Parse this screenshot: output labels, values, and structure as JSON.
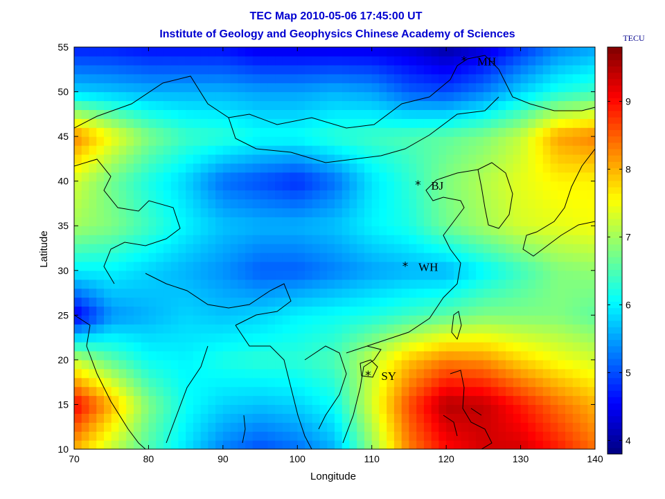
{
  "chart_data": {
    "type": "heatmap",
    "title": "TEC Map 2010-05-06 17:45:00 UT",
    "subtitle": "Institute of Geology and Geophysics Chinese Academy of Sciences",
    "xlabel": "Longitude",
    "ylabel": "Latitude",
    "xlim": [
      70,
      140
    ],
    "ylim": [
      10,
      55
    ],
    "xticks": [
      "70",
      "80",
      "90",
      "100",
      "110",
      "120",
      "130",
      "140"
    ],
    "yticks": [
      "10",
      "15",
      "20",
      "25",
      "30",
      "35",
      "40",
      "45",
      "50",
      "55"
    ],
    "colorbar": {
      "label": "TECU",
      "range": [
        3.8,
        9.8
      ],
      "ticks": [
        "4",
        "5",
        "6",
        "7",
        "8",
        "9"
      ],
      "colormap": "jet"
    },
    "grid": false,
    "stations": [
      {
        "name": "MH",
        "lon": 122.4,
        "lat": 53.5
      },
      {
        "name": "BJ",
        "lon": 116.2,
        "lat": 39.6
      },
      {
        "name": "WH",
        "lon": 114.5,
        "lat": 30.5
      },
      {
        "name": "SY",
        "lon": 109.5,
        "lat": 18.3
      }
    ],
    "tec_grid": {
      "lon": [
        70,
        75,
        80,
        85,
        90,
        95,
        100,
        105,
        110,
        115,
        120,
        125,
        130,
        135,
        140
      ],
      "lat": [
        10,
        15,
        20,
        25,
        30,
        35,
        40,
        45,
        50,
        55
      ],
      "values": [
        [
          8.0,
          7.2,
          6.5,
          5.9,
          5.3,
          5.0,
          5.2,
          5.6,
          6.9,
          8.3,
          9.0,
          9.3,
          9.3,
          8.9,
          8.4
        ],
        [
          9.1,
          8.0,
          6.8,
          6.1,
          5.8,
          5.7,
          5.8,
          6.1,
          7.3,
          8.6,
          9.5,
          9.4,
          8.9,
          8.4,
          8.0
        ],
        [
          7.2,
          6.6,
          6.1,
          6.0,
          6.2,
          6.3,
          6.3,
          6.5,
          7.2,
          7.9,
          8.3,
          8.2,
          7.8,
          7.5,
          7.3
        ],
        [
          4.4,
          5.4,
          5.6,
          5.8,
          5.7,
          5.8,
          6.0,
          6.1,
          6.2,
          6.4,
          6.6,
          6.8,
          6.8,
          6.8,
          6.6
        ],
        [
          6.0,
          6.0,
          5.8,
          5.6,
          5.4,
          5.1,
          5.1,
          5.3,
          5.5,
          5.6,
          5.6,
          6.0,
          6.4,
          6.8,
          6.9
        ],
        [
          7.0,
          6.8,
          6.4,
          6.0,
          5.7,
          5.6,
          5.6,
          5.7,
          6.0,
          6.2,
          6.7,
          7.0,
          7.3,
          7.4,
          7.5
        ],
        [
          7.3,
          6.7,
          6.2,
          5.8,
          5.2,
          5.0,
          4.8,
          5.2,
          5.9,
          6.3,
          6.8,
          7.1,
          7.4,
          7.6,
          7.6
        ],
        [
          8.3,
          7.5,
          6.8,
          6.4,
          6.3,
          6.1,
          6.1,
          6.3,
          6.4,
          6.5,
          6.6,
          6.8,
          7.2,
          8.1,
          8.3
        ],
        [
          5.8,
          5.7,
          5.6,
          5.6,
          5.6,
          5.5,
          5.5,
          5.6,
          5.5,
          5.1,
          5.0,
          5.3,
          5.8,
          6.2,
          6.4
        ],
        [
          4.7,
          4.7,
          4.6,
          4.6,
          4.6,
          4.4,
          4.4,
          4.4,
          4.4,
          4.3,
          4.0,
          4.3,
          4.8,
          5.3,
          5.5
        ]
      ]
    },
    "coastline_note_colors": {
      "coastline": "#000000",
      "title": "#0000d0"
    }
  }
}
